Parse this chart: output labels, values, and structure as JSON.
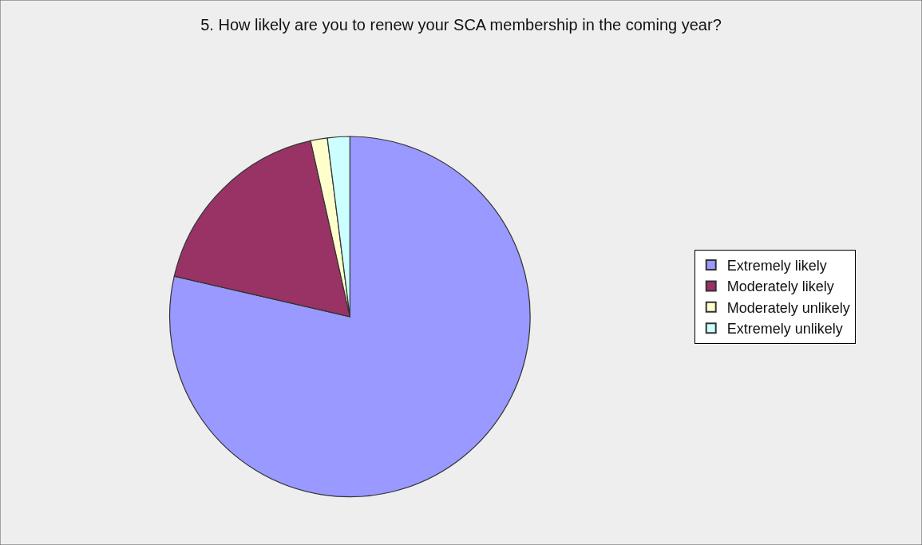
{
  "chart_data": {
    "type": "pie",
    "title": "5. How likely are you to renew your SCA membership in the coming year?",
    "categories": [
      "Extremely likely",
      "Moderately likely",
      "Moderately unlikely",
      "Extremely unlikely"
    ],
    "values": [
      78.6,
      17.9,
      1.5,
      2.0
    ],
    "colors": [
      "#9999ff",
      "#993366",
      "#ffffcc",
      "#ccffff"
    ],
    "legend": "right"
  }
}
